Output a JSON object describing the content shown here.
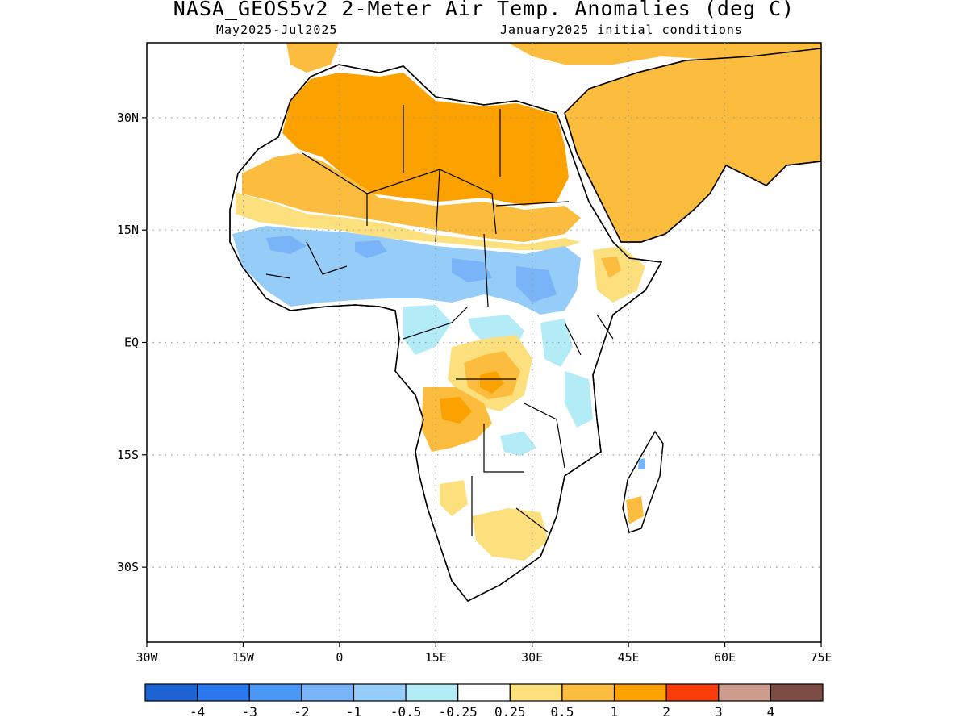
{
  "title": "NASA_GEOS5v2 2-Meter Air Temp. Anomalies (deg C)",
  "subtitle_left": "May2025-Jul2025",
  "subtitle_right": "January2025 initial conditions",
  "map": {
    "lon_range": [
      -30,
      75
    ],
    "lat_range": [
      -40,
      40
    ],
    "lon_labels": [
      "30W",
      "15W",
      "0",
      "15E",
      "30E",
      "45E",
      "60E",
      "75E"
    ],
    "lat_labels": [
      "30N",
      "15N",
      "EQ",
      "15S",
      "30S"
    ],
    "grid": "dotted"
  },
  "colorbar": {
    "colors": [
      "#1d63d4",
      "#2a77ee",
      "#4a98f5",
      "#78b4f7",
      "#96cdf8",
      "#b3ecf7",
      "#ffffff",
      "#fce07e",
      "#fcbd3e",
      "#fba200",
      "#fa3b0a",
      "#cd9c8c",
      "#7b4c43"
    ],
    "tick_labels": [
      "-4",
      "-3",
      "-2",
      "-1",
      "-0.5",
      "-0.25",
      "0.25",
      "0.5",
      "1",
      "2",
      "3",
      "4"
    ]
  }
}
